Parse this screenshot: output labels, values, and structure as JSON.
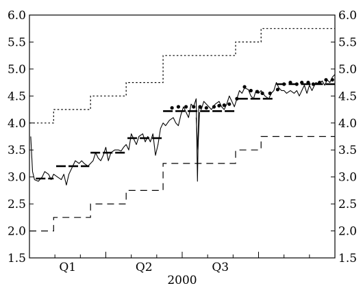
{
  "chart_data": {
    "type": "line",
    "title": "",
    "xlabel": "2000",
    "ylabel": "",
    "ylim": [
      1.5,
      6.0
    ],
    "xlim": [
      0,
      12
    ],
    "x_unit": "month of 2000 (0 = start of January, 12 = end of December)",
    "y_ticks": [
      "1.5",
      "2.0",
      "2.5",
      "3.0",
      "3.5",
      "4.0",
      "4.5",
      "5.0",
      "5.5",
      "6.0"
    ],
    "x_tick_positions": [
      0,
      1,
      2,
      3,
      4,
      5,
      6,
      7,
      8,
      9,
      10,
      11,
      12
    ],
    "x_category_labels": [
      {
        "label": "Q1",
        "x": 1.5
      },
      {
        "label": "Q2",
        "x": 4.5
      },
      {
        "label": "Q3",
        "x": 7.5
      }
    ],
    "grid": false,
    "legend": "none",
    "series": [
      {
        "style": "dotted-step",
        "color": "#000000",
        "points": [
          [
            0,
            4.0
          ],
          [
            0.95,
            4.0
          ],
          [
            0.95,
            4.25
          ],
          [
            2.4,
            4.25
          ],
          [
            2.4,
            4.5
          ],
          [
            3.8,
            4.5
          ],
          [
            3.8,
            4.75
          ],
          [
            5.25,
            4.75
          ],
          [
            5.25,
            5.25
          ],
          [
            8.1,
            5.25
          ],
          [
            8.1,
            5.5
          ],
          [
            9.1,
            5.5
          ],
          [
            9.1,
            5.75
          ],
          [
            12,
            5.75
          ]
        ]
      },
      {
        "style": "dashed-step",
        "color": "#000000",
        "points": [
          [
            0,
            2.0
          ],
          [
            0.95,
            2.0
          ],
          [
            0.95,
            2.25
          ],
          [
            2.4,
            2.25
          ],
          [
            2.4,
            2.5
          ],
          [
            3.8,
            2.5
          ],
          [
            3.8,
            2.75
          ],
          [
            5.25,
            2.75
          ],
          [
            5.25,
            3.25
          ],
          [
            8.1,
            3.25
          ],
          [
            8.1,
            3.5
          ],
          [
            9.1,
            3.5
          ],
          [
            9.1,
            3.75
          ],
          [
            12,
            3.75
          ]
        ]
      },
      {
        "style": "solid-thin",
        "color": "#000000",
        "points": [
          [
            0.05,
            3.75
          ],
          [
            0.12,
            3.1
          ],
          [
            0.2,
            2.95
          ],
          [
            0.35,
            2.92
          ],
          [
            0.5,
            3.0
          ],
          [
            0.6,
            3.1
          ],
          [
            0.75,
            3.05
          ],
          [
            0.85,
            2.95
          ],
          [
            0.95,
            3.05
          ],
          [
            1.1,
            3.0
          ],
          [
            1.25,
            2.95
          ],
          [
            1.35,
            3.05
          ],
          [
            1.45,
            2.85
          ],
          [
            1.55,
            3.05
          ],
          [
            1.7,
            3.2
          ],
          [
            1.8,
            3.3
          ],
          [
            1.95,
            3.25
          ],
          [
            2.05,
            3.3
          ],
          [
            2.15,
            3.25
          ],
          [
            2.3,
            3.2
          ],
          [
            2.4,
            3.25
          ],
          [
            2.5,
            3.3
          ],
          [
            2.6,
            3.45
          ],
          [
            2.7,
            3.35
          ],
          [
            2.8,
            3.3
          ],
          [
            2.9,
            3.4
          ],
          [
            3.0,
            3.55
          ],
          [
            3.1,
            3.3
          ],
          [
            3.2,
            3.45
          ],
          [
            3.35,
            3.5
          ],
          [
            3.5,
            3.5
          ],
          [
            3.6,
            3.48
          ],
          [
            3.7,
            3.55
          ],
          [
            3.8,
            3.6
          ],
          [
            3.9,
            3.5
          ],
          [
            4.0,
            3.8
          ],
          [
            4.1,
            3.7
          ],
          [
            4.2,
            3.6
          ],
          [
            4.3,
            3.75
          ],
          [
            4.45,
            3.8
          ],
          [
            4.55,
            3.65
          ],
          [
            4.65,
            3.75
          ],
          [
            4.75,
            3.65
          ],
          [
            4.85,
            3.8
          ],
          [
            4.95,
            3.4
          ],
          [
            5.05,
            3.6
          ],
          [
            5.15,
            3.9
          ],
          [
            5.25,
            4.0
          ],
          [
            5.35,
            3.95
          ],
          [
            5.5,
            4.05
          ],
          [
            5.65,
            4.1
          ],
          [
            5.75,
            4.0
          ],
          [
            5.85,
            3.95
          ],
          [
            5.95,
            4.15
          ],
          [
            6.05,
            4.3
          ],
          [
            6.15,
            4.2
          ],
          [
            6.25,
            4.1
          ],
          [
            6.35,
            4.35
          ],
          [
            6.45,
            4.3
          ],
          [
            6.55,
            4.45
          ],
          [
            6.6,
            2.92
          ],
          [
            6.65,
            4.3
          ],
          [
            6.75,
            4.25
          ],
          [
            6.85,
            4.4
          ],
          [
            6.95,
            4.35
          ],
          [
            7.05,
            4.3
          ],
          [
            7.15,
            4.25
          ],
          [
            7.3,
            4.35
          ],
          [
            7.45,
            4.4
          ],
          [
            7.55,
            4.3
          ],
          [
            7.65,
            4.25
          ],
          [
            7.75,
            4.35
          ],
          [
            7.85,
            4.5
          ],
          [
            7.95,
            4.4
          ],
          [
            8.05,
            4.3
          ],
          [
            8.15,
            4.45
          ],
          [
            8.25,
            4.6
          ],
          [
            8.35,
            4.55
          ],
          [
            8.45,
            4.65
          ],
          [
            8.6,
            4.62
          ],
          [
            8.7,
            4.5
          ],
          [
            8.8,
            4.45
          ],
          [
            8.9,
            4.6
          ],
          [
            9.0,
            4.55
          ],
          [
            9.1,
            4.6
          ],
          [
            9.25,
            4.5
          ],
          [
            9.4,
            4.45
          ],
          [
            9.5,
            4.55
          ],
          [
            9.6,
            4.6
          ],
          [
            9.7,
            4.75
          ],
          [
            9.8,
            4.65
          ],
          [
            9.9,
            4.6
          ],
          [
            10.0,
            4.6
          ],
          [
            10.1,
            4.55
          ],
          [
            10.25,
            4.6
          ],
          [
            10.4,
            4.55
          ],
          [
            10.5,
            4.6
          ],
          [
            10.6,
            4.5
          ],
          [
            10.7,
            4.6
          ],
          [
            10.8,
            4.7
          ],
          [
            10.9,
            4.55
          ],
          [
            11.0,
            4.7
          ],
          [
            11.1,
            4.6
          ],
          [
            11.25,
            4.75
          ],
          [
            11.4,
            4.72
          ],
          [
            11.5,
            4.78
          ],
          [
            11.6,
            4.7
          ],
          [
            11.7,
            4.8
          ],
          [
            11.8,
            4.75
          ],
          [
            11.9,
            4.85
          ],
          [
            12,
            4.9
          ]
        ]
      },
      {
        "style": "solid-thin",
        "color": "#000000",
        "points": [
          [
            6.55,
            4.1
          ],
          [
            6.62,
            3.5
          ],
          [
            6.68,
            4.2
          ]
        ]
      },
      {
        "style": "long-dash-levels",
        "color": "#000000",
        "points": [
          [
            0.25,
            2.97
          ],
          [
            0.95,
            2.97
          ],
          null,
          [
            1.05,
            3.2
          ],
          [
            2.35,
            3.2
          ],
          null,
          [
            2.4,
            3.45
          ],
          [
            3.75,
            3.45
          ],
          null,
          [
            3.85,
            3.72
          ],
          [
            5.2,
            3.72
          ],
          null,
          [
            5.25,
            4.22
          ],
          [
            8.1,
            4.22
          ],
          null,
          [
            8.2,
            4.45
          ],
          [
            9.65,
            4.45
          ],
          null,
          [
            9.7,
            4.72
          ],
          [
            12,
            4.72
          ]
        ]
      },
      {
        "style": "dots",
        "color": "#000000",
        "points": [
          [
            5.6,
            4.28
          ],
          [
            5.85,
            4.3
          ],
          [
            6.15,
            4.3
          ],
          [
            6.45,
            4.3
          ],
          [
            6.7,
            4.3
          ],
          [
            6.95,
            4.28
          ],
          [
            7.25,
            4.3
          ],
          [
            7.45,
            4.32
          ],
          [
            7.65,
            4.33
          ],
          [
            7.85,
            4.35
          ],
          [
            8.15,
            4.45
          ],
          [
            8.45,
            4.67
          ],
          [
            8.7,
            4.6
          ],
          [
            8.95,
            4.58
          ],
          [
            9.15,
            4.55
          ],
          [
            9.45,
            4.55
          ],
          [
            9.75,
            4.62
          ],
          [
            10.0,
            4.72
          ],
          [
            10.25,
            4.75
          ],
          [
            10.5,
            4.72
          ],
          [
            10.7,
            4.75
          ],
          [
            10.95,
            4.75
          ],
          [
            11.15,
            4.72
          ],
          [
            11.4,
            4.75
          ],
          [
            11.65,
            4.8
          ],
          [
            11.9,
            4.8
          ]
        ]
      }
    ]
  }
}
